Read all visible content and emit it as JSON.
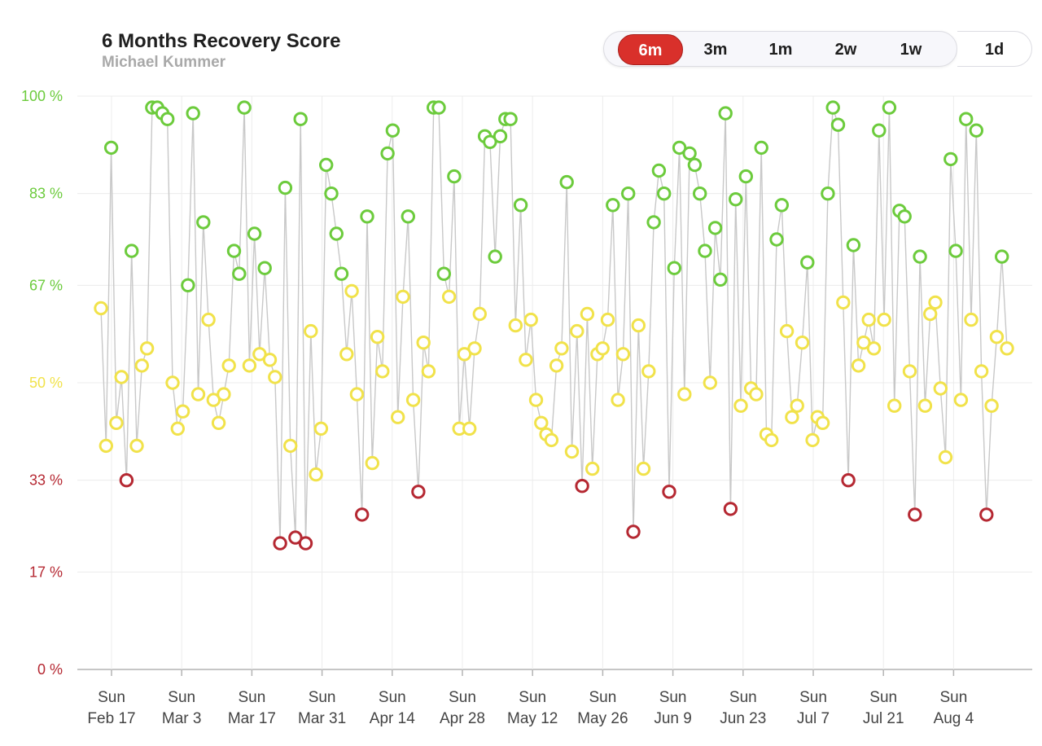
{
  "header": {
    "title": "6 Months Recovery Score",
    "subtitle": "Michael Kummer"
  },
  "range_selector": {
    "options": [
      "6m",
      "3m",
      "1m",
      "2w",
      "1w"
    ],
    "active": "6m",
    "day_option": "1d"
  },
  "colors": {
    "high": "#6ccb3c",
    "medium": "#f1e24a",
    "low": "#b52832",
    "line": "#c8c8c8",
    "grid": "#ececec",
    "active_button": "#d9302b"
  },
  "chart_data": {
    "type": "scatter",
    "title": "6 Months Recovery Score",
    "subtitle": "Michael Kummer",
    "ylim": [
      0,
      100
    ],
    "y_tick_values": [
      0,
      17,
      33,
      50,
      67,
      83,
      100
    ],
    "y_tick_labels": [
      "0 %",
      "17 %",
      "33 %",
      "50 %",
      "67 %",
      "83 %",
      "100 %"
    ],
    "x_tick_lines": [
      "Sun",
      "Sun",
      "Sun",
      "Sun",
      "Sun",
      "Sun",
      "Sun",
      "Sun",
      "Sun",
      "Sun",
      "Sun",
      "Sun",
      "Sun"
    ],
    "x_tick_labels": [
      "Feb 17",
      "Mar 3",
      "Mar 17",
      "Mar 31",
      "Apr 14",
      "Apr 28",
      "May 12",
      "May 26",
      "Jun 9",
      "Jun 23",
      "Jul 7",
      "Jul 21",
      "Aug 4"
    ],
    "thresholds": {
      "low_max": 33,
      "high_min": 67
    },
    "connected": true,
    "values": [
      63,
      39,
      91,
      43,
      51,
      33,
      73,
      39,
      53,
      56,
      98,
      98,
      97,
      96,
      50,
      42,
      45,
      67,
      97,
      48,
      78,
      61,
      47,
      43,
      48,
      53,
      73,
      69,
      98,
      53,
      76,
      55,
      70,
      54,
      51,
      22,
      84,
      39,
      23,
      96,
      22,
      59,
      34,
      42,
      88,
      83,
      76,
      69,
      55,
      66,
      48,
      27,
      79,
      36,
      58,
      52,
      90,
      94,
      44,
      65,
      79,
      47,
      31,
      57,
      52,
      98,
      98,
      69,
      65,
      86,
      42,
      55,
      42,
      56,
      62,
      93,
      92,
      72,
      93,
      96,
      96,
      60,
      81,
      54,
      61,
      47,
      43,
      41,
      40,
      53,
      56,
      85,
      38,
      59,
      32,
      62,
      35,
      55,
      56,
      61,
      81,
      47,
      55,
      83,
      24,
      60,
      35,
      52,
      78,
      87,
      83,
      31,
      70,
      91,
      48,
      90,
      88,
      83,
      73,
      50,
      77,
      68,
      97,
      28,
      82,
      46,
      86,
      49,
      48,
      91,
      41,
      40,
      75,
      81,
      59,
      44,
      46,
      57,
      71,
      40,
      44,
      43,
      83,
      98,
      95,
      64,
      33,
      74,
      53,
      57,
      61,
      56,
      94,
      61,
      98,
      46,
      80,
      79,
      52,
      27,
      72,
      46,
      62,
      64,
      49,
      37,
      89,
      73,
      47,
      96,
      61,
      94,
      52,
      27,
      46,
      58,
      72,
      56
    ]
  }
}
